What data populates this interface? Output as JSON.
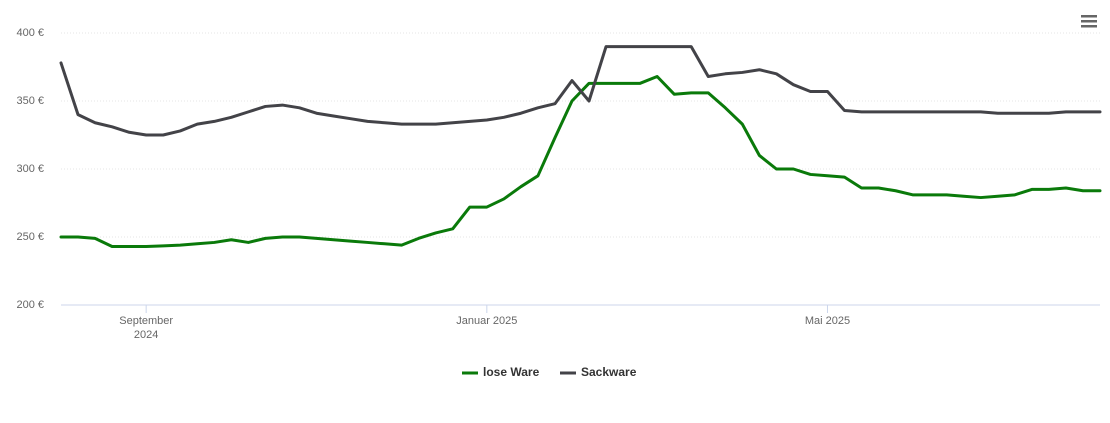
{
  "chart_data": {
    "type": "line",
    "categories": [
      null,
      null,
      null,
      null,
      null,
      "September 2024",
      null,
      null,
      null,
      null,
      null,
      null,
      null,
      null,
      null,
      null,
      null,
      null,
      null,
      null,
      null,
      null,
      null,
      null,
      null,
      "Januar 2025",
      null,
      null,
      null,
      null,
      null,
      null,
      null,
      null,
      null,
      null,
      null,
      null,
      null,
      null,
      null,
      null,
      null,
      null,
      null,
      "Mai 2025",
      null,
      null,
      null,
      null,
      null,
      null,
      null,
      null,
      null,
      null,
      null,
      null,
      null,
      null,
      null,
      null
    ],
    "series": [
      {
        "name": "lose Ware",
        "color": "#0a7a0a",
        "values": [
          250,
          250,
          249,
          243,
          243,
          243,
          243.5,
          244,
          245,
          246,
          248,
          246,
          249,
          250,
          250,
          249,
          248,
          247,
          246,
          245,
          244,
          249,
          253,
          256,
          272,
          272,
          278,
          287,
          295,
          323,
          350,
          363,
          363,
          363,
          363,
          368,
          355,
          356,
          356,
          345,
          333,
          310,
          300,
          300,
          296,
          295,
          294,
          286,
          286,
          284,
          281,
          281,
          281,
          280,
          279,
          280,
          281,
          285,
          285,
          286,
          284,
          284
        ]
      },
      {
        "name": "Sackware",
        "color": "#434348",
        "values": [
          378,
          340,
          334,
          331,
          327,
          325,
          325,
          328,
          333,
          335,
          338,
          342,
          346,
          347,
          345,
          341,
          339,
          337,
          335,
          334,
          333,
          333,
          333,
          334,
          335,
          336,
          338,
          341,
          345,
          348,
          365,
          350,
          390,
          390,
          390,
          390,
          390,
          390,
          368,
          370,
          371,
          373,
          370,
          362,
          357,
          357,
          343,
          342,
          342,
          342,
          342,
          342,
          342,
          342,
          342,
          341,
          341,
          341,
          341,
          342,
          342,
          342
        ]
      }
    ],
    "ylim": [
      200,
      400
    ],
    "yticks": [
      {
        "value": 200,
        "label": "200 €"
      },
      {
        "value": 250,
        "label": "250 €"
      },
      {
        "value": 300,
        "label": "300 €"
      },
      {
        "value": 350,
        "label": "350 €"
      },
      {
        "value": 400,
        "label": "400 €"
      }
    ],
    "grid": true,
    "legend": "bottom"
  }
}
